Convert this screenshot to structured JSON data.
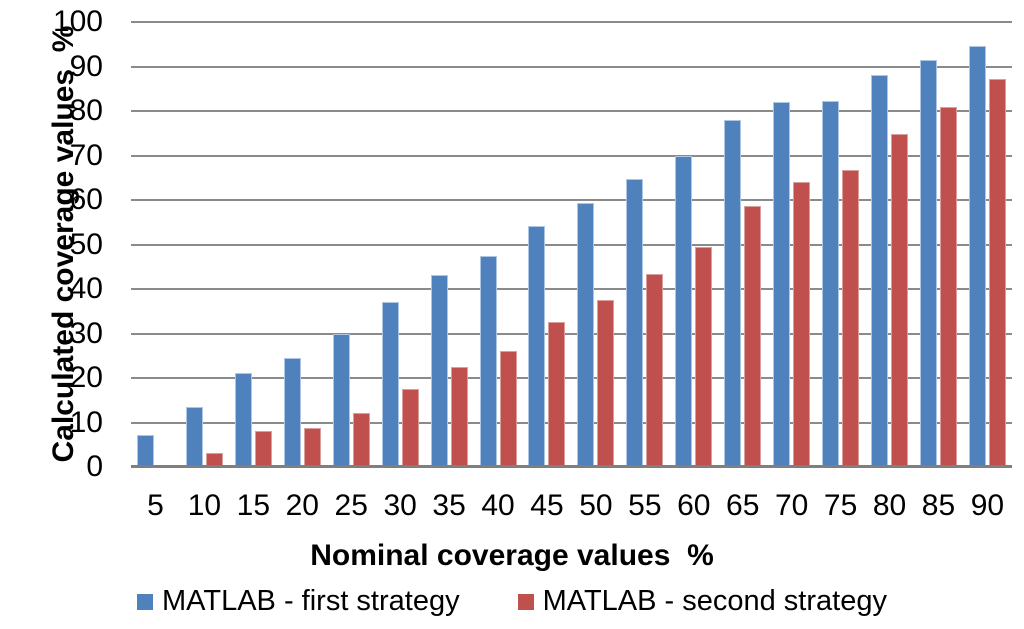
{
  "chart_data": {
    "type": "bar",
    "title": "",
    "xlabel": "Nominal coverage values  %",
    "ylabel": "Calculated coverage values  %",
    "categories": [
      5,
      10,
      15,
      20,
      25,
      30,
      35,
      40,
      45,
      50,
      55,
      60,
      65,
      70,
      75,
      80,
      85,
      90
    ],
    "series": [
      {
        "name": "MATLAB - first strategy",
        "color": "#4F81BD",
        "border_color": "#ACC6E4",
        "values": [
          7.3,
          13.5,
          21.2,
          24.5,
          30.0,
          37.0,
          43.2,
          47.5,
          54.2,
          59.4,
          64.8,
          70.0,
          78.0,
          82.0,
          82.3,
          88.0,
          91.4,
          94.6
        ]
      },
      {
        "name": "MATLAB - second strategy",
        "color": "#C0504D",
        "border_color": "#D9A09E",
        "values": [
          0,
          3.2,
          8.0,
          8.7,
          12.2,
          17.5,
          22.5,
          26.0,
          32.6,
          37.5,
          43.4,
          49.4,
          58.6,
          64.1,
          66.7,
          74.8,
          80.8,
          87.2
        ]
      }
    ],
    "ylim": [
      0,
      100
    ],
    "ytick_step": 10,
    "yticks": [
      0,
      10,
      20,
      30,
      40,
      50,
      60,
      70,
      80,
      90,
      100
    ],
    "grid": true,
    "grid_color": "#8A8A8A",
    "axis_line_color": "#7F7F7F",
    "legend_position": "bottom",
    "text_color": "#000000",
    "background_color": "#FFFFFF"
  }
}
